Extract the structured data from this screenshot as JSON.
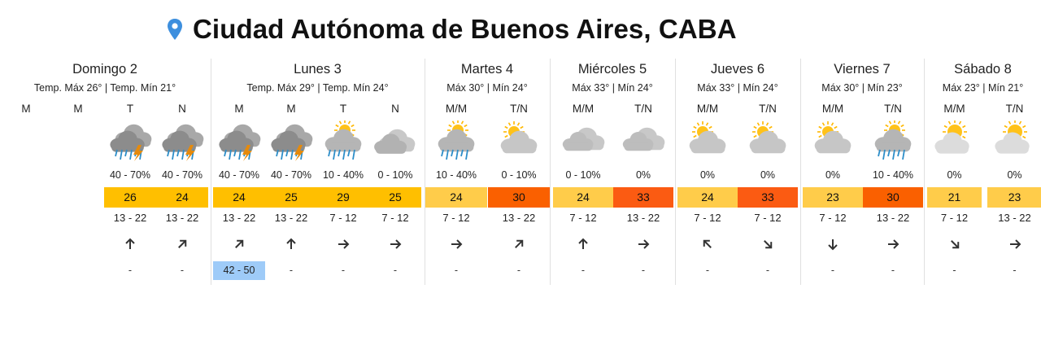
{
  "location": "Ciudad Autónoma de Buenos Aires, CABA",
  "colors": {
    "t21_25": "#ffcc4a",
    "t24_29": "#ffbf00",
    "t30": "#fa6000",
    "t33": "#fb5b12",
    "gust": "#9ecbf8"
  },
  "days": [
    {
      "name": "Domingo 2",
      "temps": "Temp. Máx 26° | Temp. Mín 21°",
      "slots": [
        {
          "label": "M",
          "icon": "",
          "prob": "",
          "temp": "",
          "temp_color": "",
          "wind": "",
          "arrow": "",
          "gust": ""
        },
        {
          "label": "M",
          "icon": "",
          "prob": "",
          "temp": "",
          "temp_color": "",
          "wind": "",
          "arrow": "",
          "gust": ""
        },
        {
          "label": "T",
          "icon": "storm-icon",
          "prob": "40 - 70%",
          "temp": "26",
          "temp_color": "#ffbf00",
          "wind": "13 - 22",
          "arrow": "s",
          "gust": "-"
        },
        {
          "label": "N",
          "icon": "storm-icon",
          "prob": "40 - 70%",
          "temp": "24",
          "temp_color": "#ffbf00",
          "wind": "13 - 22",
          "arrow": "sw",
          "gust": "-"
        }
      ]
    },
    {
      "name": "Lunes 3",
      "temps": "Temp. Máx 29° | Temp. Mín 24°",
      "slots": [
        {
          "label": "M",
          "icon": "storm-icon",
          "prob": "40 - 70%",
          "temp": "24",
          "temp_color": "#ffbf00",
          "wind": "13 - 22",
          "arrow": "sw",
          "gust": "42 - 50",
          "gust_hl": true
        },
        {
          "label": "M",
          "icon": "storm-icon",
          "prob": "40 - 70%",
          "temp": "25",
          "temp_color": "#ffbf00",
          "wind": "13 - 22",
          "arrow": "s",
          "gust": "-"
        },
        {
          "label": "T",
          "icon": "sun-rain-icon",
          "prob": "10 - 40%",
          "temp": "29",
          "temp_color": "#ffbf00",
          "wind": "7 - 12",
          "arrow": "w",
          "gust": "-"
        },
        {
          "label": "N",
          "icon": "cloudy-night-icon",
          "prob": "0 - 10%",
          "temp": "25",
          "temp_color": "#ffbf00",
          "wind": "7 - 12",
          "arrow": "w",
          "gust": "-"
        }
      ]
    },
    {
      "name": "Martes 4",
      "temps": "Máx 30° | Mín 24°",
      "slots": [
        {
          "label": "M/M",
          "icon": "sun-rain-icon",
          "prob": "10 - 40%",
          "temp": "24",
          "temp_color": "#ffcc4a",
          "wind": "7 - 12",
          "arrow": "w",
          "gust": "-"
        },
        {
          "label": "T/N",
          "icon": "partly-cloudy-icon",
          "prob": "0 - 10%",
          "temp": "30",
          "temp_color": "#fa6000",
          "wind": "13 - 22",
          "arrow": "sw",
          "gust": "-"
        }
      ]
    },
    {
      "name": "Miércoles 5",
      "temps": "Máx 33° | Mín 24°",
      "slots": [
        {
          "label": "M/M",
          "icon": "cloud-icon",
          "prob": "0 - 10%",
          "temp": "24",
          "temp_color": "#ffcc4a",
          "wind": "7 - 12",
          "arrow": "s",
          "gust": "-"
        },
        {
          "label": "T/N",
          "icon": "cloud-icon",
          "prob": "0%",
          "temp": "33",
          "temp_color": "#fb5b12",
          "wind": "13 - 22",
          "arrow": "w",
          "gust": "-"
        }
      ]
    },
    {
      "name": "Jueves 6",
      "temps": "Máx 33° | Mín 24°",
      "slots": [
        {
          "label": "M/M",
          "icon": "partly-cloudy-icon",
          "prob": "0%",
          "temp": "24",
          "temp_color": "#ffcc4a",
          "wind": "7 - 12",
          "arrow": "se",
          "gust": "-"
        },
        {
          "label": "T/N",
          "icon": "partly-cloudy-icon",
          "prob": "0%",
          "temp": "33",
          "temp_color": "#fb5b12",
          "wind": "7 - 12",
          "arrow": "nw",
          "gust": "-"
        }
      ]
    },
    {
      "name": "Viernes 7",
      "temps": "Máx 30° | Mín 23°",
      "slots": [
        {
          "label": "M/M",
          "icon": "partly-cloudy-icon",
          "prob": "0%",
          "temp": "23",
          "temp_color": "#ffcc4a",
          "wind": "7 - 12",
          "arrow": "n",
          "gust": "-"
        },
        {
          "label": "T/N",
          "icon": "sun-rain-icon",
          "prob": "10 - 40%",
          "temp": "30",
          "temp_color": "#fa6000",
          "wind": "13 - 22",
          "arrow": "w",
          "gust": "-"
        }
      ]
    },
    {
      "name": "Sábado 8",
      "temps": "Máx 23° | Mín 21°",
      "slots": [
        {
          "label": "M/M",
          "icon": "sunny-cloud-icon",
          "prob": "0%",
          "temp": "21",
          "temp_color": "#ffcc4a",
          "wind": "7 - 12",
          "arrow": "nw",
          "gust": "-"
        },
        {
          "label": "T/N",
          "icon": "sunny-cloud-icon",
          "prob": "0%",
          "temp": "23",
          "temp_color": "#ffcc4a",
          "wind": "13 - 22",
          "arrow": "w",
          "gust": "-"
        }
      ]
    }
  ]
}
